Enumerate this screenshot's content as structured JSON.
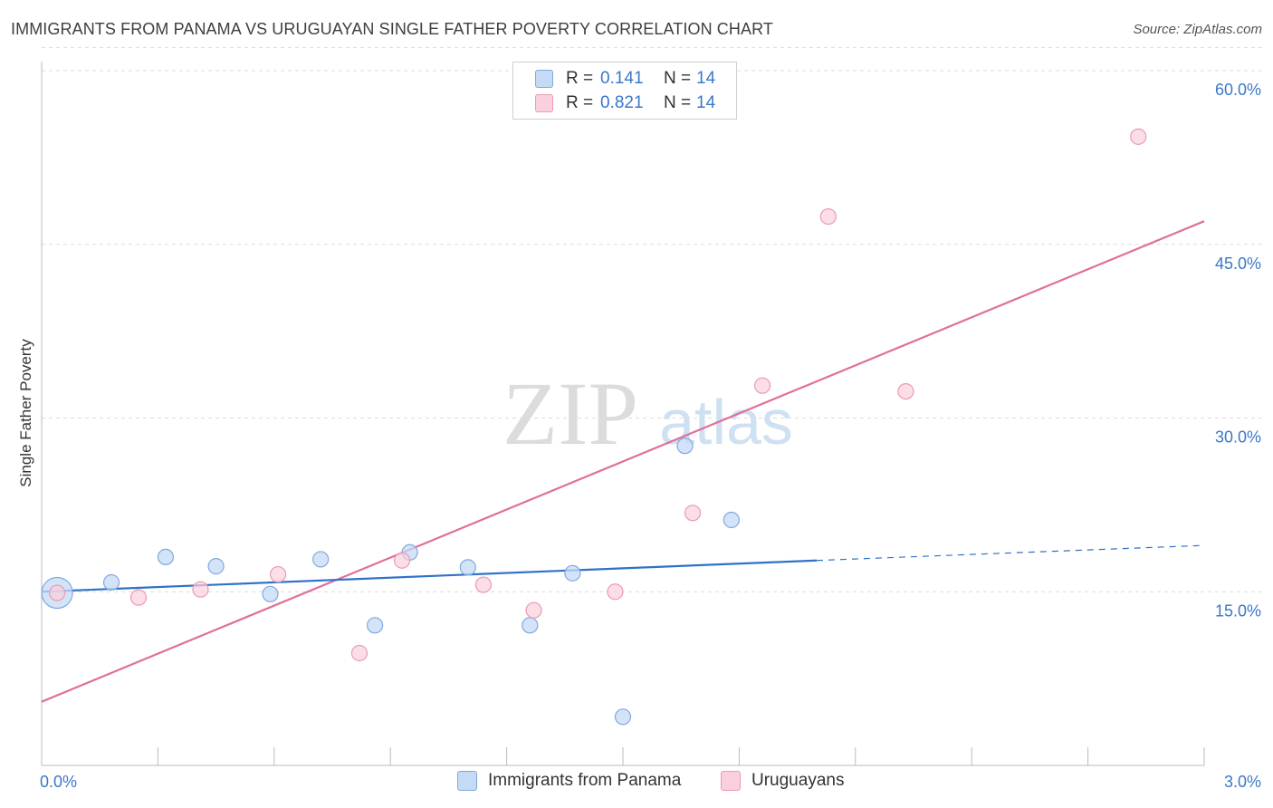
{
  "header": {
    "title": "IMMIGRANTS FROM PANAMA VS URUGUAYAN SINGLE FATHER POVERTY CORRELATION CHART",
    "source": "Source: ZipAtlas.com"
  },
  "watermark": {
    "zip": "ZIP",
    "atlas": "atlas"
  },
  "legend": {
    "rows": [
      {
        "r_label": "R =",
        "r_value": "0.141",
        "n_label": "N =",
        "n_value": "14",
        "color": "#a8c8f0"
      },
      {
        "r_label": "R =",
        "r_value": "0.821",
        "n_label": "N =",
        "n_value": "14",
        "color": "#f7b6c8"
      }
    ]
  },
  "bottom_legend": {
    "series1": "Immigrants from Panama",
    "series2": "Uruguayans"
  },
  "colors": {
    "blue_fill": "#c5dbf5",
    "blue_stroke": "#7fa9dd",
    "blue_line": "#2f72c8",
    "pink_fill": "#fad0dc",
    "pink_stroke": "#ec9ab3",
    "pink_line": "#e0709a",
    "axis_text": "#3a78c9"
  },
  "chart_data": {
    "type": "scatter",
    "title": "IMMIGRANTS FROM PANAMA VS URUGUAYAN SINGLE FATHER POVERTY CORRELATION CHART",
    "xlabel": "",
    "ylabel": "Single Father Poverty",
    "xlim": [
      0,
      3.0
    ],
    "ylim": [
      0,
      60
    ],
    "x_tick_labels": [
      "0.0%",
      "3.0%"
    ],
    "y_ticks": [
      15,
      30,
      45,
      60
    ],
    "y_tick_labels": [
      "15.0%",
      "30.0%",
      "45.0%",
      "60.0%"
    ],
    "grid": true,
    "series": [
      {
        "name": "Immigrants from Panama",
        "r": 0.141,
        "n": 14,
        "points": [
          {
            "x": 0.04,
            "y": 14.9,
            "size": "large"
          },
          {
            "x": 0.18,
            "y": 15.8
          },
          {
            "x": 0.32,
            "y": 18.0
          },
          {
            "x": 0.45,
            "y": 17.2
          },
          {
            "x": 0.59,
            "y": 14.8
          },
          {
            "x": 0.72,
            "y": 17.8
          },
          {
            "x": 0.86,
            "y": 12.1
          },
          {
            "x": 0.95,
            "y": 18.4
          },
          {
            "x": 1.1,
            "y": 17.1
          },
          {
            "x": 1.26,
            "y": 12.1
          },
          {
            "x": 1.37,
            "y": 16.6
          },
          {
            "x": 1.5,
            "y": 4.2
          },
          {
            "x": 1.66,
            "y": 27.6
          },
          {
            "x": 1.78,
            "y": 21.2
          }
        ],
        "trend": {
          "x_start": 0.0,
          "y_start": 15.0,
          "x_solid_end": 2.0,
          "y_solid_end": 17.7,
          "x_end": 3.0,
          "y_end": 19.0
        }
      },
      {
        "name": "Uruguayans",
        "r": 0.821,
        "n": 14,
        "points": [
          {
            "x": 0.04,
            "y": 14.9
          },
          {
            "x": 0.25,
            "y": 14.5
          },
          {
            "x": 0.41,
            "y": 15.2
          },
          {
            "x": 0.61,
            "y": 16.5
          },
          {
            "x": 0.82,
            "y": 9.7
          },
          {
            "x": 0.93,
            "y": 17.7
          },
          {
            "x": 1.14,
            "y": 15.6
          },
          {
            "x": 1.27,
            "y": 13.4
          },
          {
            "x": 1.48,
            "y": 15.0
          },
          {
            "x": 1.68,
            "y": 21.8
          },
          {
            "x": 1.86,
            "y": 32.8
          },
          {
            "x": 2.03,
            "y": 47.4
          },
          {
            "x": 2.23,
            "y": 32.3
          },
          {
            "x": 2.83,
            "y": 54.3
          }
        ],
        "trend": {
          "x_start": 0.0,
          "y_start": 5.5,
          "x_end": 3.0,
          "y_end": 47.0
        }
      }
    ]
  }
}
